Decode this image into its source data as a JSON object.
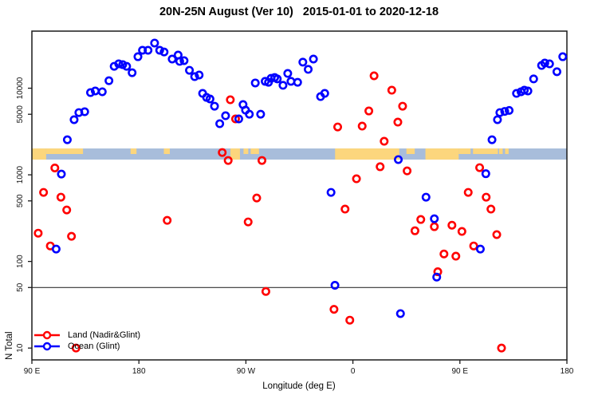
{
  "title": "20N-25N August (Ver 10)   2015-01-01 to 2020-12-18",
  "legend": {
    "items": [
      {
        "label": "Land (Nadir&Glint)",
        "color": "#ff0000"
      },
      {
        "label": "Ocean (Glint)",
        "color": "#0000ff"
      }
    ]
  },
  "chart_data": {
    "type": "scatter",
    "title": "20N-25N August (Ver 10)   2015-01-01 to 2020-12-18",
    "xlabel": "Longitude (deg E)",
    "ylabel": "N Total",
    "x_scale": "linear",
    "y_scale": "log",
    "xlim": [
      90,
      540
    ],
    "ylim": [
      7.3,
      45600
    ],
    "grid": false,
    "legend_position": "bottom-left",
    "reference_line_y": 50,
    "x_ticks": [
      {
        "value": 90,
        "label": "90 E"
      },
      {
        "value": 180,
        "label": "180"
      },
      {
        "value": 270,
        "label": "90 W"
      },
      {
        "value": 360,
        "label": "0"
      },
      {
        "value": 450,
        "label": "90 E"
      },
      {
        "value": 540,
        "label": "180"
      }
    ],
    "y_ticks": [
      {
        "value": 10,
        "label": "10"
      },
      {
        "value": 50,
        "label": "50"
      },
      {
        "value": 100,
        "label": "100"
      },
      {
        "value": 500,
        "label": "500"
      },
      {
        "value": 1000,
        "label": "1000"
      },
      {
        "value": 5000,
        "label": "5000"
      },
      {
        "value": 10000,
        "label": "10000"
      }
    ],
    "coast_band": {
      "value_top": 2015,
      "value_bottom": 1500,
      "ocean_color": "#a8bddb",
      "land_color": "#fcd67d",
      "land_segments": [
        {
          "from": 90,
          "to": 102,
          "part": "full"
        },
        {
          "from": 102,
          "to": 133,
          "part": "top"
        },
        {
          "from": 173,
          "to": 178,
          "part": "top"
        },
        {
          "from": 201,
          "to": 206,
          "part": "top"
        },
        {
          "from": 257,
          "to": 265,
          "part": "full"
        },
        {
          "from": 268,
          "to": 272,
          "part": "top"
        },
        {
          "from": 274,
          "to": 281,
          "part": "top"
        },
        {
          "from": 345,
          "to": 399,
          "part": "full"
        },
        {
          "from": 405,
          "to": 412,
          "part": "top"
        },
        {
          "from": 421,
          "to": 449,
          "part": "full"
        },
        {
          "from": 449,
          "to": 459,
          "part": "top"
        },
        {
          "from": 461,
          "to": 482,
          "part": "top"
        },
        {
          "from": 483,
          "to": 486,
          "part": "top"
        },
        {
          "from": 488,
          "to": 491,
          "part": "top"
        }
      ]
    },
    "series": [
      {
        "name": "Land (Nadir&Glint)",
        "color": "#ff0000",
        "marker": "open-circle",
        "points": [
          [
            95.3,
            212
          ],
          [
            99.8,
            627
          ],
          [
            105.5,
            151
          ],
          [
            109.3,
            1200
          ],
          [
            114.4,
            552
          ],
          [
            119.3,
            393
          ],
          [
            123.3,
            195
          ],
          [
            127.1,
            10
          ],
          [
            203.8,
            298
          ],
          [
            250.1,
            1810
          ],
          [
            255.1,
            1465
          ],
          [
            256.9,
            7350
          ],
          [
            261.3,
            4420
          ],
          [
            271.9,
            286
          ],
          [
            279.1,
            540
          ],
          [
            283.5,
            1465
          ],
          [
            286.8,
            45
          ],
          [
            344.1,
            28
          ],
          [
            347.2,
            3570
          ],
          [
            353.4,
            402
          ],
          [
            357.4,
            21
          ],
          [
            363.0,
            900
          ],
          [
            367.8,
            3650
          ],
          [
            373.4,
            5460
          ],
          [
            377.8,
            13900
          ],
          [
            382.9,
            1240
          ],
          [
            386.3,
            2440
          ],
          [
            392.7,
            9480
          ],
          [
            397.8,
            4060
          ],
          [
            401.8,
            6200
          ],
          [
            405.6,
            1110
          ],
          [
            412.2,
            226
          ],
          [
            417.1,
            305
          ],
          [
            428.5,
            252
          ],
          [
            431.4,
            76
          ],
          [
            436.6,
            122
          ],
          [
            443.3,
            262
          ],
          [
            446.6,
            115
          ],
          [
            451.7,
            222
          ],
          [
            457.0,
            627
          ],
          [
            461.6,
            151
          ],
          [
            466.6,
            1210
          ],
          [
            472.1,
            552
          ],
          [
            476.1,
            402
          ],
          [
            481.0,
            204
          ],
          [
            485.0,
            10
          ]
        ]
      },
      {
        "name": "Ocean (Glint)",
        "color": "#0000ff",
        "marker": "open-circle",
        "points": [
          [
            110.4,
            139
          ],
          [
            114.8,
            1020
          ],
          [
            119.8,
            2540
          ],
          [
            125.5,
            4330
          ],
          [
            129.5,
            5230
          ],
          [
            134.4,
            5350
          ],
          [
            139.3,
            8900
          ],
          [
            143.3,
            9290
          ],
          [
            149.2,
            9100
          ],
          [
            154.8,
            12200
          ],
          [
            159.2,
            17900
          ],
          [
            163.0,
            19100
          ],
          [
            166.4,
            18700
          ],
          [
            169.7,
            17900
          ],
          [
            174.3,
            15100
          ],
          [
            179.2,
            23100
          ],
          [
            183.0,
            27400
          ],
          [
            187.7,
            27400
          ],
          [
            193.2,
            33200
          ],
          [
            197.5,
            27400
          ],
          [
            201.2,
            26200
          ],
          [
            208.0,
            21700
          ],
          [
            213.0,
            24100
          ],
          [
            214.3,
            20400
          ],
          [
            218.0,
            20800
          ],
          [
            222.5,
            16100
          ],
          [
            226.9,
            13600
          ],
          [
            230.7,
            14200
          ],
          [
            233.6,
            8710
          ],
          [
            236.9,
            7830
          ],
          [
            239.8,
            7510
          ],
          [
            243.6,
            6200
          ],
          [
            248.0,
            3890
          ],
          [
            252.9,
            4810
          ],
          [
            264.0,
            4420
          ],
          [
            267.6,
            6470
          ],
          [
            269.7,
            5580
          ],
          [
            272.9,
            5010
          ],
          [
            277.9,
            11500
          ],
          [
            282.4,
            5010
          ],
          [
            286.2,
            12000
          ],
          [
            289.0,
            11700
          ],
          [
            291.2,
            13000
          ],
          [
            294.2,
            13300
          ],
          [
            296.4,
            12800
          ],
          [
            301.2,
            10800
          ],
          [
            305.2,
            14800
          ],
          [
            307.9,
            12000
          ],
          [
            313.5,
            11700
          ],
          [
            317.9,
            20000
          ],
          [
            322.4,
            16500
          ],
          [
            326.8,
            21700
          ],
          [
            332.8,
            8000
          ],
          [
            336.3,
            8710
          ],
          [
            341.6,
            627
          ],
          [
            344.9,
            53
          ],
          [
            398.2,
            1500
          ],
          [
            400.0,
            25
          ],
          [
            421.5,
            552
          ],
          [
            428.5,
            311
          ],
          [
            430.5,
            66
          ],
          [
            467.2,
            139
          ],
          [
            471.8,
            1030
          ],
          [
            477.0,
            2540
          ],
          [
            481.6,
            4330
          ],
          [
            483.6,
            5230
          ],
          [
            487.7,
            5400
          ],
          [
            491.4,
            5540
          ],
          [
            497.6,
            8710
          ],
          [
            501.4,
            9100
          ],
          [
            504.2,
            9480
          ],
          [
            507.2,
            9290
          ],
          [
            512.0,
            12800
          ],
          [
            518.7,
            18300
          ],
          [
            521.4,
            19500
          ],
          [
            525.4,
            19100
          ],
          [
            531.6,
            15500
          ],
          [
            536.5,
            23100
          ]
        ]
      }
    ]
  }
}
